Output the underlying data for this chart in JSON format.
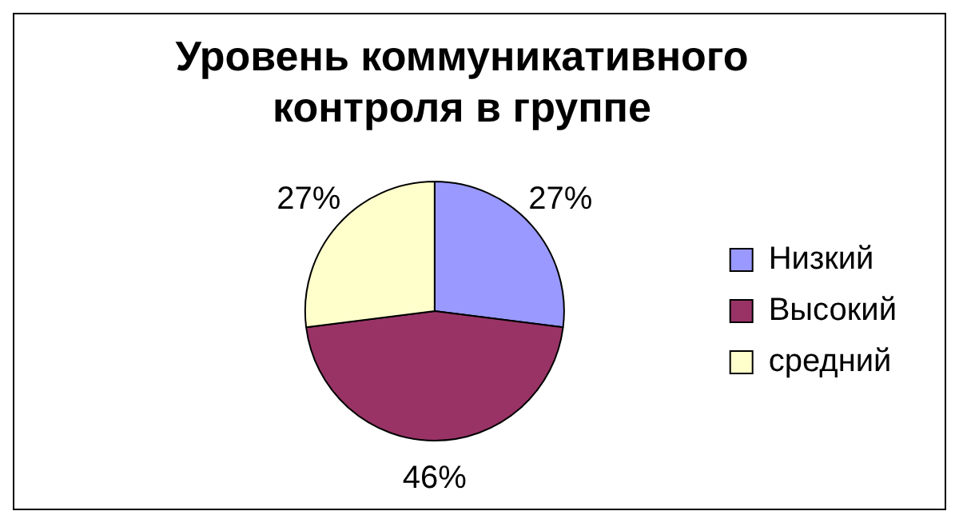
{
  "chart_data": {
    "type": "pie",
    "title": "Уровень коммуникативного контроля в группе",
    "categories": [
      "Низкий",
      "Высокий",
      "средний"
    ],
    "values": [
      27,
      46,
      27
    ],
    "colors": [
      "#9999ff",
      "#993366",
      "#ffffcc"
    ],
    "value_labels": [
      "27%",
      "46%",
      "27%"
    ],
    "legend": "right"
  }
}
